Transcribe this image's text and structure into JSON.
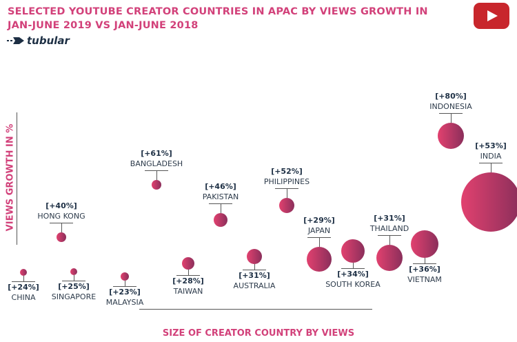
{
  "header": {
    "title_line1": "SELECTED YOUTUBE CREATOR COUNTRIES IN APAC BY VIEWS GROWTH IN",
    "title_line2": "JAN-JUNE 2019 VS JAN-JUNE 2018",
    "logo_text": "tubular",
    "youtube_icon": "youtube-play-icon"
  },
  "chart_data": {
    "type": "bubble",
    "title": "SELECTED YOUTUBE CREATOR COUNTRIES IN APAC BY VIEWS GROWTH IN JAN-JUNE 2019 VS JAN-JUNE 2018",
    "xlabel": "SIZE OF CREATOR COUNTRY BY VIEWS",
    "ylabel": "VIEWS GROWTH IN %",
    "bubble_color_gradient": [
      "#e2416f",
      "#8b2f5b"
    ],
    "accent_color": "#d2417a",
    "points": [
      {
        "country": "CHINA",
        "growth_label": "[+24%]",
        "growth": 24
      },
      {
        "country": "SINGAPORE",
        "growth_label": "[+25%]",
        "growth": 25
      },
      {
        "country": "MALAYSIA",
        "growth_label": "[+23%]",
        "growth": 23
      },
      {
        "country": "HONG KONG",
        "growth_label": "[+40%]",
        "growth": 40
      },
      {
        "country": "BANGLADESH",
        "growth_label": "[+61%]",
        "growth": 61
      },
      {
        "country": "TAIWAN",
        "growth_label": "[+28%]",
        "growth": 28
      },
      {
        "country": "PAKISTAN",
        "growth_label": "[+46%]",
        "growth": 46
      },
      {
        "country": "AUSTRALIA",
        "growth_label": "[+31%]",
        "growth": 31
      },
      {
        "country": "PHILIPPINES",
        "growth_label": "[+52%]",
        "growth": 52
      },
      {
        "country": "JAPAN",
        "growth_label": "[+29%]",
        "growth": 29
      },
      {
        "country": "SOUTH KOREA",
        "growth_label": "[+34%]",
        "growth": 34
      },
      {
        "country": "THAILAND",
        "growth_label": "[+31%]",
        "growth": 31
      },
      {
        "country": "VIETNAM",
        "growth_label": "[+36%]",
        "growth": 36
      },
      {
        "country": "INDONESIA",
        "growth_label": "[+80%]",
        "growth": 80
      },
      {
        "country": "INDIA",
        "growth_label": "[+53%]",
        "growth": 53
      }
    ]
  }
}
